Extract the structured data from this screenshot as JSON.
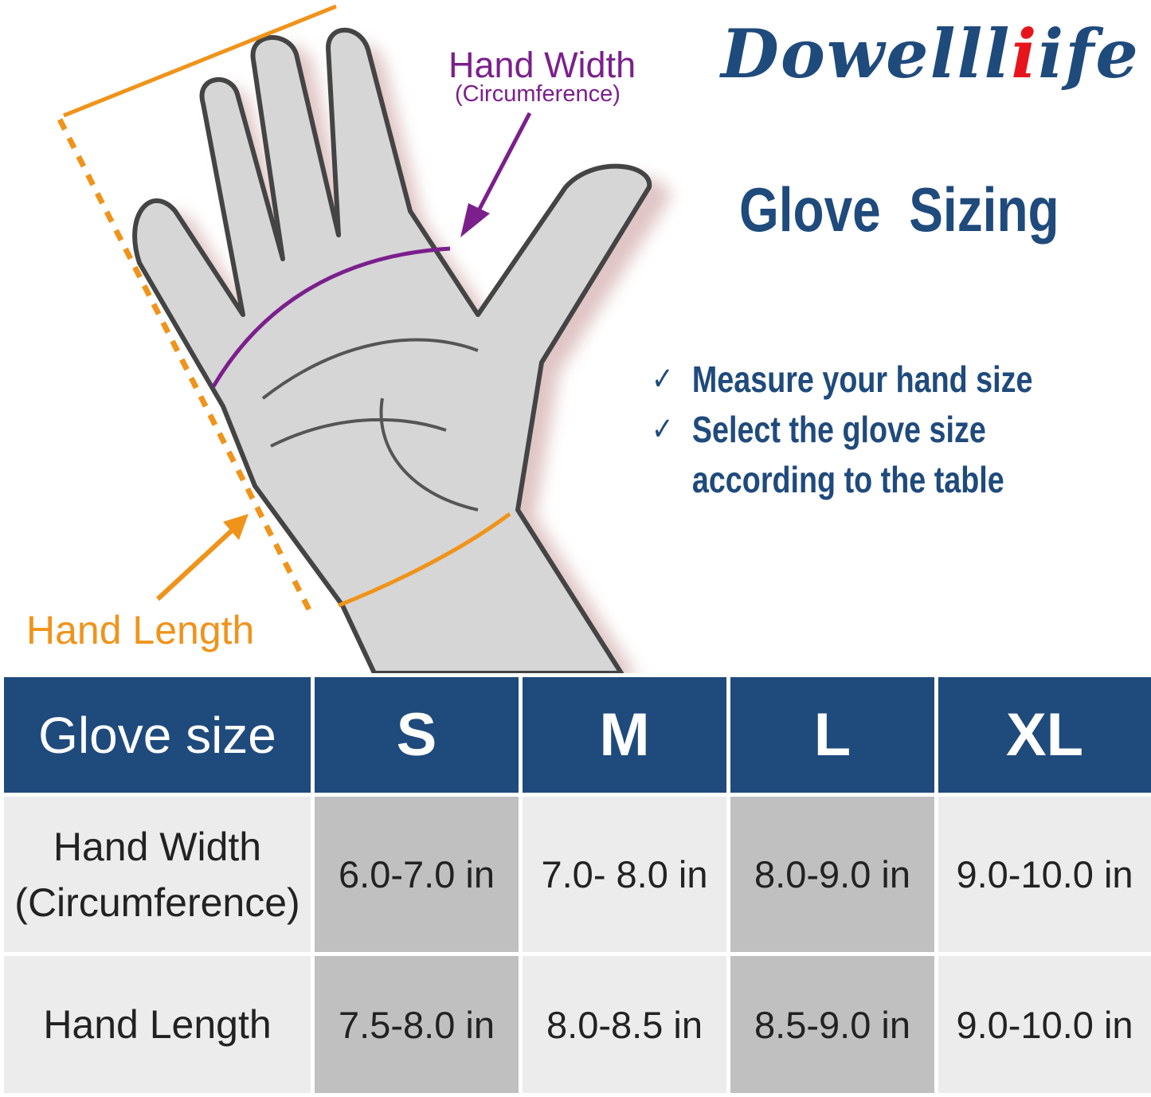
{
  "brand": {
    "logo_text_main": "Dowell",
    "logo_text_accent": "ife",
    "logo_text_i": "l",
    "colors": {
      "primary": "#1f4a7c",
      "accent": "#e8141c"
    }
  },
  "title": "Glove  Sizing",
  "tips": [
    {
      "icon": "checkmark-icon",
      "text": "Measure your hand size"
    },
    {
      "icon": "checkmark-icon",
      "text": "Select the glove size"
    },
    {
      "icon": "",
      "text": "according to the table"
    }
  ],
  "illustration": {
    "hand_width_label": "Hand Width",
    "hand_width_sub": "(Circumference)",
    "hand_length_label": "Hand Length",
    "colors": {
      "width": "#7b1f8c",
      "length": "#f0931a"
    }
  },
  "table": {
    "header": "Glove size",
    "sizes": [
      "S",
      "M",
      "L",
      "XL"
    ],
    "rows": [
      {
        "label_line1": "Hand Width",
        "label_line2": "(Circumference)",
        "values": [
          "6.0-7.0 in",
          "7.0- 8.0 in",
          "8.0-9.0 in",
          "9.0-10.0 in"
        ]
      },
      {
        "label_line1": "Hand Length",
        "values": [
          "7.5-8.0 in",
          "8.0-8.5 in",
          "8.5-9.0 in",
          "9.0-10.0 in"
        ]
      }
    ]
  }
}
